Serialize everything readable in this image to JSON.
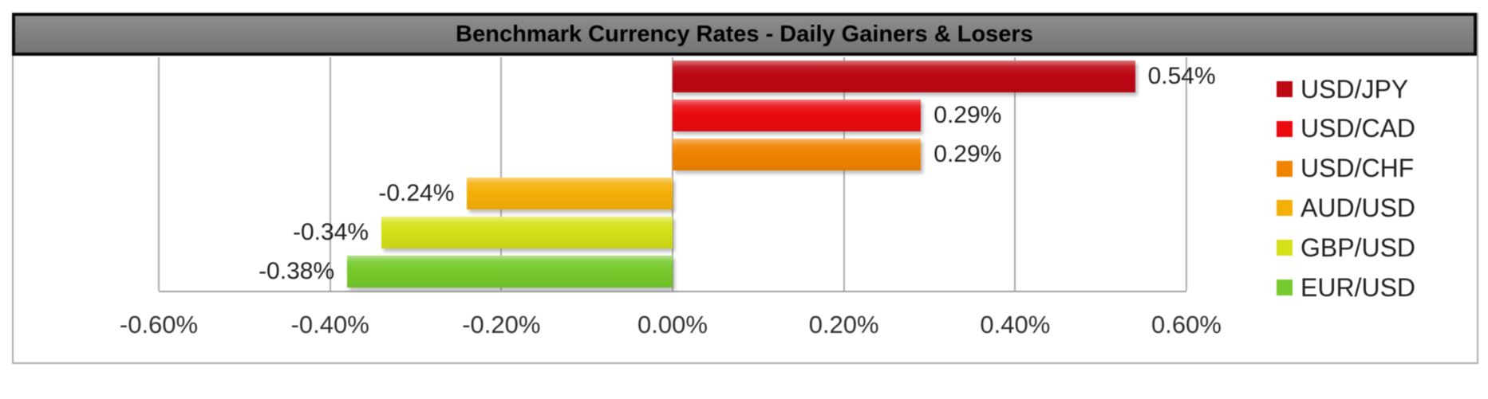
{
  "title": "Benchmark Currency Rates - Daily Gainers & Losers",
  "title_bar_color": "#7f7f7f",
  "chart_data": {
    "type": "bar",
    "orientation": "horizontal",
    "title": "Benchmark Currency Rates - Daily Gainers & Losers",
    "xlabel": "",
    "ylabel": "",
    "xlim": [
      -0.6,
      0.6
    ],
    "grid": true,
    "legend_position": "right",
    "x_ticks": [
      "-0.60%",
      "-0.40%",
      "-0.20%",
      "0.00%",
      "0.20%",
      "0.40%",
      "0.60%"
    ],
    "series": [
      {
        "name": "USD/JPY",
        "value": 0.54,
        "label": "0.54%",
        "color": "#bd0712"
      },
      {
        "name": "USD/CAD",
        "value": 0.29,
        "label": "0.29%",
        "color": "#ea0a10"
      },
      {
        "name": "USD/CHF",
        "value": 0.29,
        "label": "0.29%",
        "color": "#f08300"
      },
      {
        "name": "AUD/USD",
        "value": -0.24,
        "label": "-0.24%",
        "color": "#f5b008"
      },
      {
        "name": "GBP/USD",
        "value": -0.34,
        "label": "-0.34%",
        "color": "#d5e018"
      },
      {
        "name": "EUR/USD",
        "value": -0.38,
        "label": "-0.38%",
        "color": "#76c92c"
      }
    ]
  }
}
